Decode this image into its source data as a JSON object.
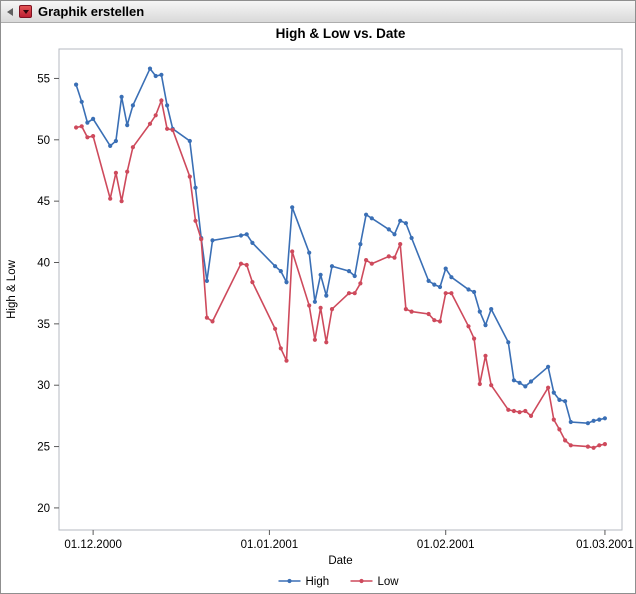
{
  "window": {
    "title": "Graphik erstellen",
    "titlebar": {
      "collapse_icon": "left-triangle-icon",
      "menu_icon": "red-triangle-icon"
    }
  },
  "chart_data": {
    "type": "line",
    "title": "High & Low vs. Date",
    "xlabel": "Date",
    "ylabel": "High & Low",
    "grid": false,
    "legend_position": "bottom",
    "x_tick_labels": [
      "01.12.2000",
      "01.01.2001",
      "01.02.2001",
      "01.03.2001"
    ],
    "x_tick_dates": [
      "2000-12-01",
      "2001-01-01",
      "2001-02-01",
      "2001-03-01"
    ],
    "x_domain": [
      "2000-11-25",
      "2001-03-04"
    ],
    "y_ticks": [
      20,
      25,
      30,
      35,
      40,
      45,
      50,
      55
    ],
    "ylim": [
      18.2,
      57.4
    ],
    "colors": {
      "high": "#3a6fb5",
      "low": "#ce4a5c"
    },
    "x": [
      "2000-11-28",
      "2000-11-29",
      "2000-11-30",
      "2000-12-01",
      "2000-12-04",
      "2000-12-05",
      "2000-12-06",
      "2000-12-07",
      "2000-12-08",
      "2000-12-11",
      "2000-12-12",
      "2000-12-13",
      "2000-12-14",
      "2000-12-15",
      "2000-12-18",
      "2000-12-19",
      "2000-12-20",
      "2000-12-21",
      "2000-12-22",
      "2000-12-27",
      "2000-12-28",
      "2000-12-29",
      "2001-01-02",
      "2001-01-03",
      "2001-01-04",
      "2001-01-05",
      "2001-01-08",
      "2001-01-09",
      "2001-01-10",
      "2001-01-11",
      "2001-01-12",
      "2001-01-15",
      "2001-01-16",
      "2001-01-17",
      "2001-01-18",
      "2001-01-19",
      "2001-01-22",
      "2001-01-23",
      "2001-01-24",
      "2001-01-25",
      "2001-01-26",
      "2001-01-29",
      "2001-01-30",
      "2001-01-31",
      "2001-02-01",
      "2001-02-02",
      "2001-02-05",
      "2001-02-06",
      "2001-02-07",
      "2001-02-08",
      "2001-02-09",
      "2001-02-12",
      "2001-02-13",
      "2001-02-14",
      "2001-02-15",
      "2001-02-16",
      "2001-02-19",
      "2001-02-20",
      "2001-02-21",
      "2001-02-22",
      "2001-02-23",
      "2001-02-26",
      "2001-02-27",
      "2001-02-28",
      "2001-03-01"
    ],
    "series": [
      {
        "name": "High",
        "color": "#3a6fb5",
        "values": [
          54.5,
          53.1,
          51.4,
          51.7,
          49.5,
          49.9,
          53.5,
          51.2,
          52.8,
          55.8,
          55.2,
          55.3,
          52.8,
          50.9,
          49.9,
          46.1,
          42.0,
          38.5,
          41.8,
          42.2,
          42.3,
          41.6,
          39.7,
          39.3,
          38.4,
          44.5,
          40.8,
          36.8,
          39.0,
          37.3,
          39.7,
          39.3,
          38.9,
          41.5,
          43.9,
          43.6,
          42.7,
          42.3,
          43.4,
          43.2,
          42.0,
          38.5,
          38.2,
          38.0,
          39.5,
          38.8,
          37.8,
          37.6,
          36.0,
          34.9,
          36.2,
          33.5,
          30.4,
          30.2,
          29.9,
          30.3,
          31.5,
          29.4,
          28.8,
          28.7,
          27.0,
          26.9,
          27.1,
          27.2,
          27.3
        ]
      },
      {
        "name": "Low",
        "color": "#ce4a5c",
        "values": [
          51.0,
          51.1,
          50.2,
          50.3,
          45.2,
          47.3,
          45.0,
          47.4,
          49.4,
          51.3,
          52.0,
          53.2,
          50.9,
          50.8,
          47.0,
          43.4,
          41.9,
          35.5,
          35.2,
          39.9,
          39.8,
          38.4,
          34.6,
          33.0,
          32.0,
          40.9,
          36.5,
          33.7,
          36.3,
          33.5,
          36.2,
          37.5,
          37.5,
          38.3,
          40.2,
          39.9,
          40.5,
          40.4,
          41.5,
          36.2,
          36.0,
          35.8,
          35.3,
          35.2,
          37.5,
          37.5,
          34.8,
          33.8,
          30.1,
          32.4,
          30.0,
          28.0,
          27.9,
          27.8,
          27.9,
          27.5,
          29.8,
          27.2,
          26.4,
          25.5,
          25.1,
          25.0,
          24.9,
          25.1,
          25.2
        ]
      }
    ]
  }
}
